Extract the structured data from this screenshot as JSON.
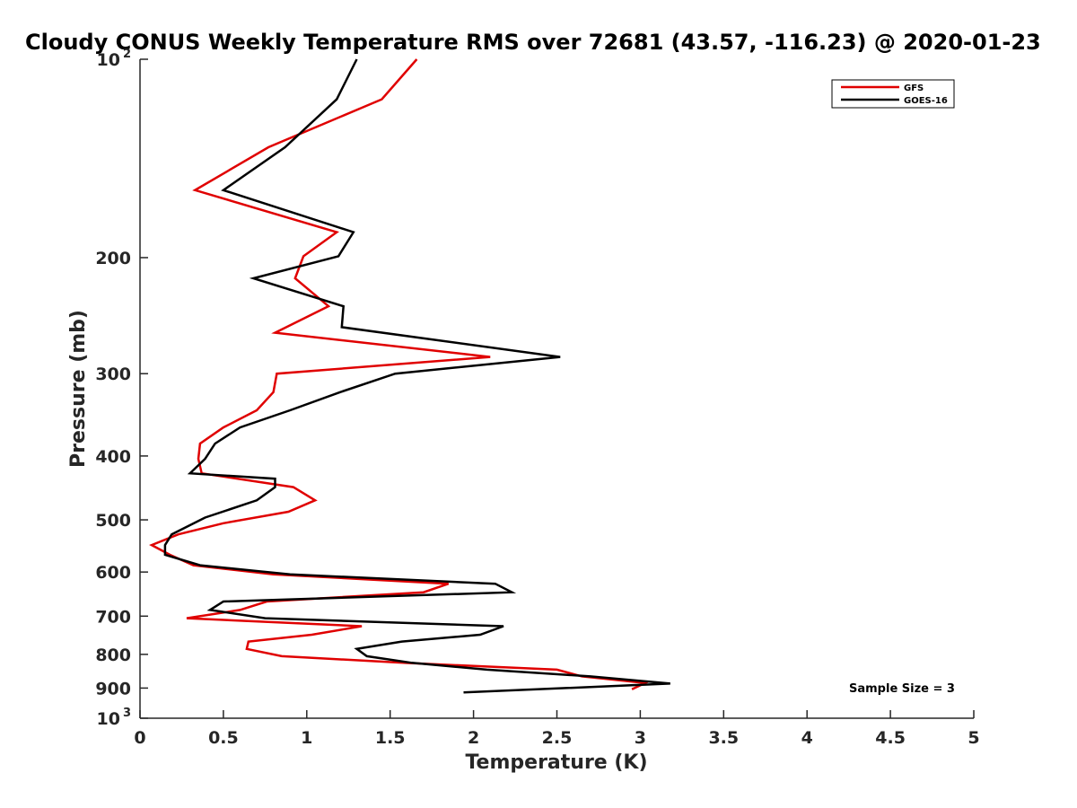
{
  "chart_data": {
    "type": "line",
    "title": "Cloudy CONUS Weekly Temperature RMS over 72681 (43.57, -116.23) @ 2020-01-23",
    "xlabel": "Temperature (K)",
    "ylabel": "Pressure (mb)",
    "xlim": [
      0,
      5
    ],
    "ylim": [
      100,
      1000
    ],
    "y_scale": "log",
    "y_reversed": true,
    "x_ticks": [
      "0",
      "0.5",
      "1",
      "1.5",
      "2",
      "2.5",
      "3",
      "3.5",
      "4",
      "4.5",
      "5"
    ],
    "x_tick_values": [
      0,
      0.5,
      1,
      1.5,
      2,
      2.5,
      3,
      3.5,
      4,
      4.5,
      5
    ],
    "y_tick_values": [
      100,
      200,
      300,
      400,
      500,
      600,
      700,
      800,
      900,
      1000
    ],
    "y_ticks": [
      {
        "base": "10",
        "exp": "2"
      },
      {
        "base": "200",
        "exp": ""
      },
      {
        "base": "300",
        "exp": ""
      },
      {
        "base": "400",
        "exp": ""
      },
      {
        "base": "500",
        "exp": ""
      },
      {
        "base": "600",
        "exp": ""
      },
      {
        "base": "700",
        "exp": ""
      },
      {
        "base": "800",
        "exp": ""
      },
      {
        "base": "900",
        "exp": ""
      },
      {
        "base": "10",
        "exp": "3"
      }
    ],
    "grid": false,
    "legend_position": "top-right",
    "annotation": "Sample Size = 3",
    "series": [
      {
        "name": "GFS",
        "color": "#e00000",
        "points": [
          [
            1.66,
            100
          ],
          [
            1.45,
            115
          ],
          [
            0.77,
            136
          ],
          [
            0.33,
            158
          ],
          [
            1.18,
            183
          ],
          [
            0.98,
            199
          ],
          [
            0.93,
            215
          ],
          [
            1.13,
            237
          ],
          [
            0.81,
            260
          ],
          [
            2.1,
            283
          ],
          [
            0.82,
            300
          ],
          [
            0.8,
            320
          ],
          [
            0.7,
            341
          ],
          [
            0.5,
            362
          ],
          [
            0.36,
            383
          ],
          [
            0.35,
            404
          ],
          [
            0.37,
            425
          ],
          [
            0.92,
            446
          ],
          [
            1.05,
            467
          ],
          [
            0.89,
            486
          ],
          [
            0.5,
            506
          ],
          [
            0.23,
            526
          ],
          [
            0.07,
            546
          ],
          [
            0.18,
            565
          ],
          [
            0.32,
            586
          ],
          [
            0.8,
            605
          ],
          [
            1.85,
            625
          ],
          [
            1.7,
            644
          ],
          [
            0.76,
            665
          ],
          [
            0.6,
            685
          ],
          [
            0.28,
            705
          ],
          [
            1.33,
            725
          ],
          [
            1.03,
            747
          ],
          [
            0.65,
            765
          ],
          [
            0.64,
            785
          ],
          [
            0.85,
            805
          ],
          [
            1.58,
            824
          ],
          [
            2.5,
            844
          ],
          [
            2.65,
            864
          ],
          [
            3.03,
            884
          ],
          [
            2.95,
            904
          ]
        ]
      },
      {
        "name": "GOES-16",
        "color": "#000000",
        "points": [
          [
            1.3,
            100
          ],
          [
            1.18,
            115
          ],
          [
            0.87,
            136
          ],
          [
            0.5,
            158
          ],
          [
            1.28,
            183
          ],
          [
            1.19,
            199
          ],
          [
            0.68,
            215
          ],
          [
            1.22,
            237
          ],
          [
            1.21,
            255
          ],
          [
            2.52,
            283
          ],
          [
            1.53,
            300
          ],
          [
            1.2,
            320
          ],
          [
            0.9,
            341
          ],
          [
            0.6,
            362
          ],
          [
            0.45,
            383
          ],
          [
            0.39,
            404
          ],
          [
            0.3,
            425
          ],
          [
            0.81,
            433
          ],
          [
            0.81,
            446
          ],
          [
            0.7,
            467
          ],
          [
            0.39,
            496
          ],
          [
            0.19,
            526
          ],
          [
            0.15,
            546
          ],
          [
            0.15,
            565
          ],
          [
            0.36,
            586
          ],
          [
            0.9,
            605
          ],
          [
            2.13,
            625
          ],
          [
            2.23,
            644
          ],
          [
            0.5,
            665
          ],
          [
            0.42,
            685
          ],
          [
            0.75,
            705
          ],
          [
            2.18,
            725
          ],
          [
            2.04,
            747
          ],
          [
            1.57,
            765
          ],
          [
            1.3,
            785
          ],
          [
            1.36,
            805
          ],
          [
            1.63,
            824
          ],
          [
            2.08,
            844
          ],
          [
            2.7,
            864
          ],
          [
            3.18,
            886
          ],
          [
            1.94,
            914
          ]
        ]
      }
    ]
  }
}
